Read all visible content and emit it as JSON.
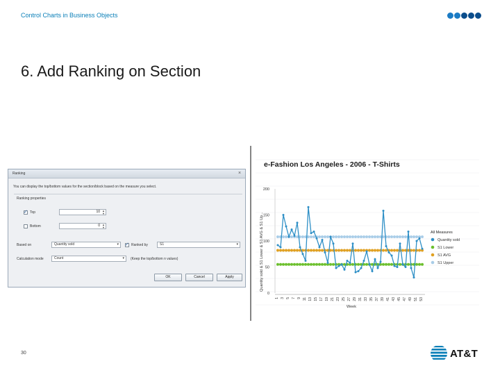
{
  "header": {
    "text": "Control Charts in Business Objects"
  },
  "slide": {
    "title": "6. Add Ranking on Section",
    "page_number": "30"
  },
  "dialog": {
    "title": "Ranking",
    "description": "You can display the top/bottom values for the section/block based on the measure you select.",
    "group_label": "Ranking properties",
    "top_label": "Top",
    "top_checked": true,
    "top_value": "10",
    "bottom_label": "Bottom",
    "bottom_checked": false,
    "bottom_value": "0",
    "based_on_label": "Based on",
    "based_on_value": "Quantity sold",
    "ranked_by_label": "Ranked by",
    "ranked_by_checked": true,
    "ranked_by_value": "S1",
    "calc_mode_label": "Calculation mode",
    "calc_mode_value": "Count",
    "calc_mode_note": "(Keep the top/bottom n values)",
    "ok_label": "OK",
    "cancel_label": "Cancel",
    "apply_label": "Apply"
  },
  "chart_data": {
    "type": "line",
    "title": "e-Fashion Los Angeles - 2006 - T-Shirts",
    "xlabel": "Week",
    "ylabel": "Quantity sold & S1 Lower & S1 AVG & S1 Up...",
    "ylim": [
      0,
      200
    ],
    "yticks": [
      0,
      50,
      100,
      150,
      200
    ],
    "xtick_labels": [
      "1",
      "3",
      "5",
      "7",
      "9",
      "11",
      "13",
      "15",
      "17",
      "19",
      "21",
      "23",
      "25",
      "27",
      "29",
      "31",
      "33",
      "35",
      "37",
      "39",
      "41",
      "43",
      "45",
      "47",
      "49",
      "51",
      "53"
    ],
    "x": [
      1,
      2,
      3,
      4,
      5,
      6,
      7,
      8,
      9,
      10,
      11,
      12,
      13,
      14,
      15,
      16,
      17,
      18,
      19,
      20,
      21,
      22,
      23,
      24,
      25,
      26,
      27,
      28,
      29,
      30,
      31,
      32,
      33,
      34,
      35,
      36,
      37,
      38,
      39,
      40,
      41,
      42,
      43,
      44,
      45,
      46,
      47,
      48,
      49,
      50,
      51,
      52,
      53
    ],
    "legend_title": "All Measures",
    "legend_position": "right",
    "grid": true,
    "series": [
      {
        "name": "Quantity sold",
        "color": "#2e8fc6",
        "style": "line",
        "values": [
          92,
          88,
          150,
          128,
          108,
          122,
          110,
          135,
          88,
          75,
          62,
          165,
          115,
          118,
          105,
          88,
          102,
          78,
          58,
          108,
          95,
          48,
          52,
          55,
          45,
          62,
          58,
          95,
          40,
          42,
          48,
          62,
          80,
          55,
          42,
          65,
          48,
          60,
          158,
          90,
          78,
          72,
          52,
          50,
          95,
          55,
          50,
          118,
          48,
          30,
          100,
          105,
          85
        ]
      },
      {
        "name": "S1 Lower",
        "color": "#6bbf2c",
        "style": "markers",
        "values": [
          55,
          55,
          55,
          55,
          55,
          55,
          55,
          55,
          55,
          55,
          55,
          55,
          55,
          55,
          55,
          55,
          55,
          55,
          55,
          55,
          55,
          55,
          55,
          55,
          55,
          55,
          55,
          55,
          55,
          55,
          55,
          55,
          55,
          55,
          55,
          55,
          55,
          55,
          55,
          55,
          55,
          55,
          55,
          55,
          55,
          55,
          55,
          55,
          55,
          55,
          55,
          55,
          55
        ]
      },
      {
        "name": "S1 AVG",
        "color": "#e0a020",
        "style": "markers",
        "values": [
          82,
          82,
          82,
          82,
          82,
          82,
          82,
          82,
          82,
          82,
          82,
          82,
          82,
          82,
          82,
          82,
          82,
          82,
          82,
          82,
          82,
          82,
          82,
          82,
          82,
          82,
          82,
          82,
          82,
          82,
          82,
          82,
          82,
          82,
          82,
          82,
          82,
          82,
          82,
          82,
          82,
          82,
          82,
          82,
          82,
          82,
          82,
          82,
          82,
          82,
          82,
          82,
          82
        ]
      },
      {
        "name": "S1 Upper",
        "color": "#a9cde8",
        "style": "markers",
        "values": [
          108,
          108,
          108,
          108,
          108,
          108,
          108,
          108,
          108,
          108,
          108,
          108,
          108,
          108,
          108,
          108,
          108,
          108,
          108,
          108,
          108,
          108,
          108,
          108,
          108,
          108,
          108,
          108,
          108,
          108,
          108,
          108,
          108,
          108,
          108,
          108,
          108,
          108,
          108,
          108,
          108,
          108,
          108,
          108,
          108,
          108,
          108,
          108,
          108,
          108,
          108,
          108,
          108
        ]
      }
    ]
  },
  "branding": {
    "logo_text": "AT&T",
    "accent_color": "#0a7fb8"
  }
}
